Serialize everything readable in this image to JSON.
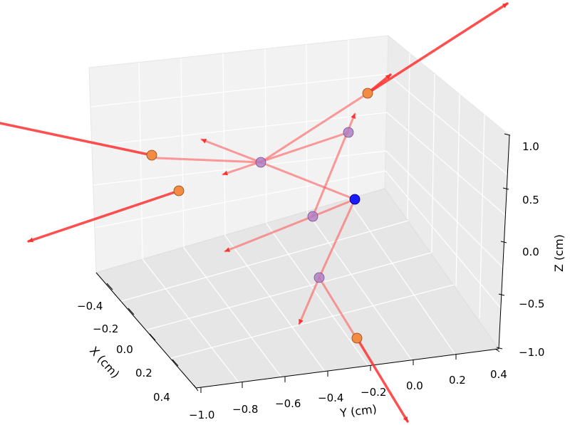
{
  "chart_data": {
    "type": "scatter",
    "projection": "3d",
    "title": "",
    "xlabel": "X (cm)",
    "ylabel": "Y (cm)",
    "zlabel": "Z (cm)",
    "xlim": [
      -0.5,
      0.5
    ],
    "ylim": [
      -1.0,
      0.5
    ],
    "zlim": [
      -1.0,
      1.0
    ],
    "grid": true,
    "x_ticks": [
      "−0.4",
      "−0.2",
      "0.0",
      "0.2",
      "0.4"
    ],
    "y_ticks": [
      "−1.0",
      "−0.8",
      "−0.6",
      "−0.4",
      "−0.2",
      "0.0",
      "0.2",
      "0.4"
    ],
    "z_ticks": [
      "−1.0",
      "−0.5",
      "0.0",
      "0.5",
      "1.0"
    ],
    "source_point": {
      "x": 0.0,
      "y": 0.0,
      "z": 0.5,
      "color": "#1a1aff"
    },
    "scatter_points": [
      {
        "x": -0.1,
        "y": -0.52,
        "z": 0.95,
        "color": "#b07fc4"
      },
      {
        "x": 0.1,
        "y": -0.04,
        "z": 1.15,
        "color": "#b07fc4"
      },
      {
        "x": 0.05,
        "y": -0.18,
        "z": 0.3,
        "color": "#b07fc4"
      },
      {
        "x": 0.2,
        "y": -0.1,
        "z": -0.2,
        "color": "#b07fc4"
      }
    ],
    "detection_points": [
      {
        "x": 0.0,
        "y": -0.83,
        "z": 1.2,
        "color": "#f58a42"
      },
      {
        "x": -0.35,
        "y": 0.2,
        "z": 1.35,
        "color": "#f58a42"
      },
      {
        "x": 0.1,
        "y": -0.75,
        "z": 0.8,
        "color": "#f58a42"
      },
      {
        "x": 0.4,
        "y": -0.05,
        "z": -0.7,
        "color": "#f58a42"
      }
    ],
    "arrow_color": "#ff3030"
  }
}
